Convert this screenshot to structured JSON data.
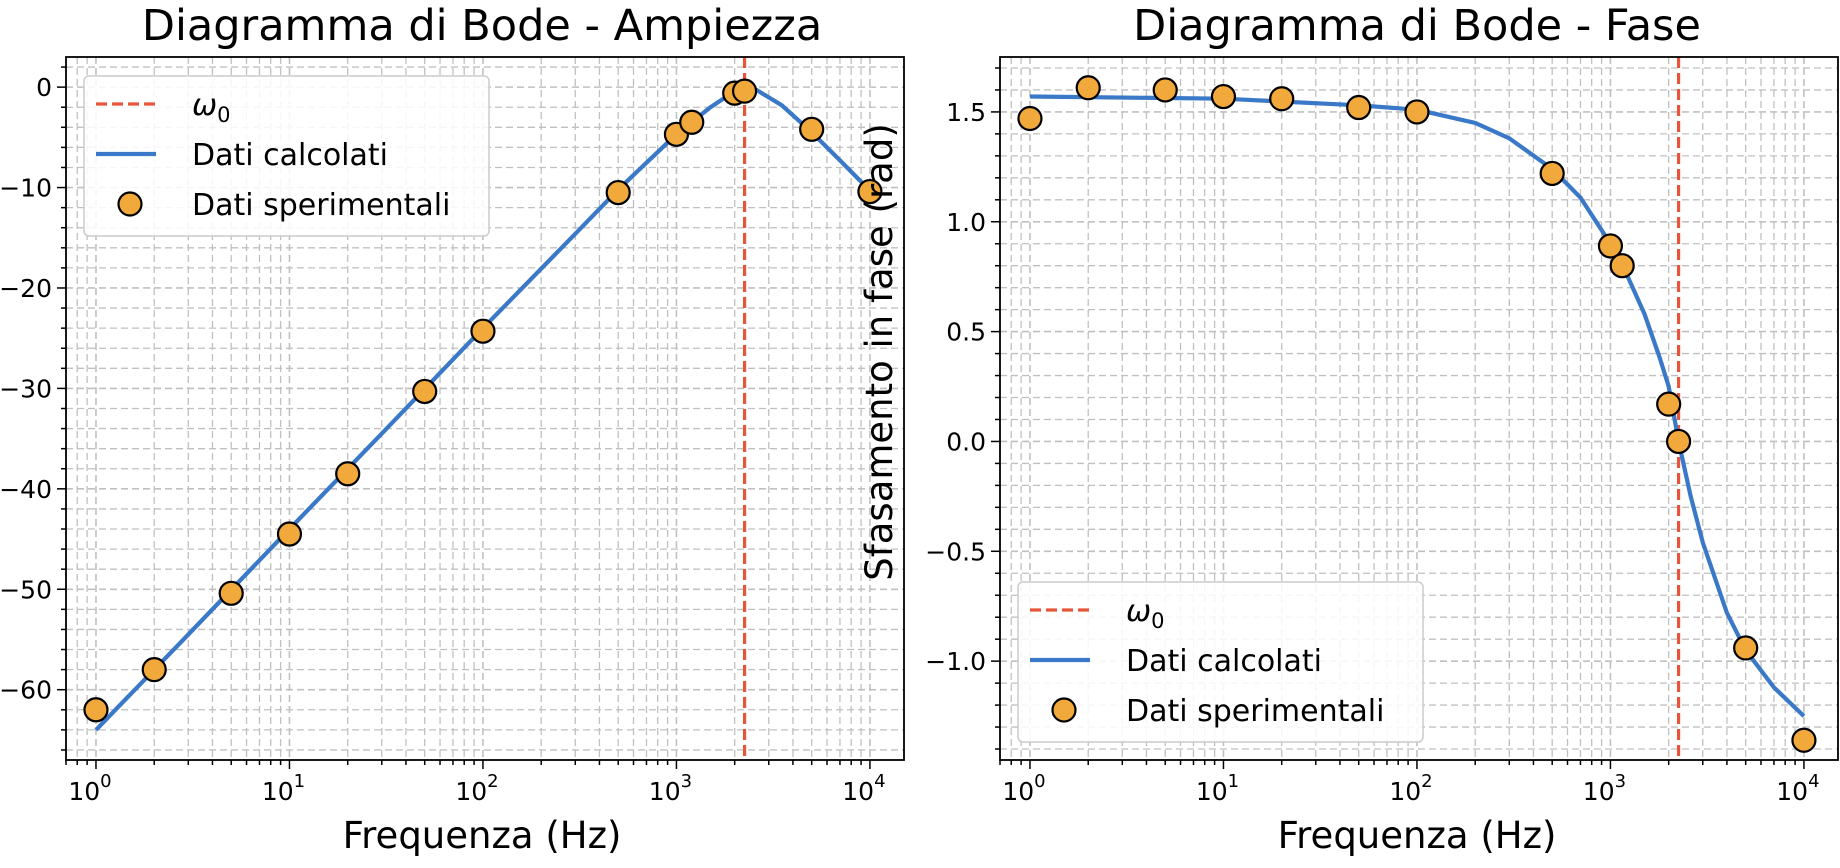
{
  "colors": {
    "omega_line": "#e8553a",
    "curve": "#3a78c8",
    "points": "#f2a93b",
    "point_edge": "#000000",
    "grid": "#c0c0c0"
  },
  "chart_data": [
    {
      "type": "line",
      "title": "Diagramma di Bode - Ampiezza",
      "xlabel": "Frequenza (Hz)",
      "ylabel": "",
      "xscale": "log",
      "xlim": [
        0.7,
        15000
      ],
      "ylim": [
        -67,
        3
      ],
      "xticks": [
        {
          "value": 1,
          "base": "10",
          "exp": "0"
        },
        {
          "value": 10,
          "base": "10",
          "exp": "1"
        },
        {
          "value": 100,
          "base": "10",
          "exp": "2"
        },
        {
          "value": 1000,
          "base": "10",
          "exp": "3"
        },
        {
          "value": 10000,
          "base": "10",
          "exp": "4"
        }
      ],
      "yticks": [
        {
          "value": 0,
          "label": "0"
        },
        {
          "value": -10,
          "label": "−10"
        },
        {
          "value": -20,
          "label": "−20"
        },
        {
          "value": -30,
          "label": "−30"
        },
        {
          "value": -40,
          "label": "−40"
        },
        {
          "value": -50,
          "label": "−50"
        },
        {
          "value": -60,
          "label": "−60"
        }
      ],
      "grid": true,
      "legend_position": "top-left",
      "omega0": 2250,
      "series": [
        {
          "name": "Dati calcolati",
          "kind": "line",
          "x": [
            1,
            3,
            10,
            30,
            100,
            300,
            500,
            1000,
            1500,
            2000,
            2250,
            2600,
            3500,
            5000,
            7000,
            10000
          ],
          "y": [
            -64.0,
            -54.5,
            -44.0,
            -34.5,
            -24.0,
            -14.6,
            -10.2,
            -4.7,
            -2.0,
            -0.4,
            0.0,
            -0.3,
            -1.8,
            -4.5,
            -7.3,
            -10.3
          ]
        },
        {
          "name": "Dati sperimentali",
          "kind": "scatter",
          "x": [
            1,
            2,
            5,
            10,
            20,
            50,
            100,
            500,
            1000,
            1200,
            2000,
            2250,
            5000,
            10000
          ],
          "y": [
            -62,
            -58,
            -50.4,
            -44.5,
            -38.5,
            -30.3,
            -24.3,
            -10.5,
            -4.7,
            -3.5,
            -0.6,
            -0.4,
            -4.2,
            -10.4
          ]
        }
      ],
      "legend": [
        {
          "kind": "dashed",
          "label_base": "ω",
          "label_sub": "0"
        },
        {
          "kind": "line",
          "label": "Dati calcolati"
        },
        {
          "kind": "marker",
          "label": "Dati sperimentali"
        }
      ]
    },
    {
      "type": "line",
      "title": "Diagramma di Bode - Fase",
      "xlabel": "Frequenza (Hz)",
      "ylabel": "Sfasamento in fase (rad)",
      "xscale": "log",
      "xlim": [
        0.7,
        15000
      ],
      "ylim": [
        -1.45,
        1.75
      ],
      "xticks": [
        {
          "value": 1,
          "base": "10",
          "exp": "0"
        },
        {
          "value": 10,
          "base": "10",
          "exp": "1"
        },
        {
          "value": 100,
          "base": "10",
          "exp": "2"
        },
        {
          "value": 1000,
          "base": "10",
          "exp": "3"
        },
        {
          "value": 10000,
          "base": "10",
          "exp": "4"
        }
      ],
      "yticks": [
        {
          "value": 1.5,
          "label": "1.5"
        },
        {
          "value": 1.0,
          "label": "1.0"
        },
        {
          "value": 0.5,
          "label": "0.5"
        },
        {
          "value": 0.0,
          "label": "0.0"
        },
        {
          "value": -0.5,
          "label": "−0.5"
        },
        {
          "value": -1.0,
          "label": "−1.0"
        }
      ],
      "grid": true,
      "legend_position": "bottom-left",
      "omega0": 2250,
      "series": [
        {
          "name": "Dati calcolati",
          "kind": "line",
          "x": [
            1,
            10,
            50,
            100,
            200,
            300,
            500,
            700,
            1000,
            1200,
            1500,
            1800,
            2000,
            2250,
            2600,
            3000,
            4000,
            5000,
            7000,
            10000
          ],
          "y": [
            1.57,
            1.56,
            1.53,
            1.51,
            1.45,
            1.38,
            1.24,
            1.11,
            0.9,
            0.77,
            0.58,
            0.38,
            0.25,
            0.0,
            -0.25,
            -0.46,
            -0.78,
            -0.95,
            -1.12,
            -1.25
          ]
        },
        {
          "name": "Dati sperimentali",
          "kind": "scatter",
          "x": [
            1,
            2,
            5,
            10,
            20,
            50,
            100,
            500,
            1000,
            1150,
            2000,
            2250,
            5000,
            10000
          ],
          "y": [
            1.47,
            1.61,
            1.6,
            1.57,
            1.56,
            1.52,
            1.5,
            1.22,
            0.89,
            0.8,
            0.17,
            0.0,
            -0.94,
            -1.36
          ]
        }
      ],
      "legend": [
        {
          "kind": "dashed",
          "label_base": "ω",
          "label_sub": "0"
        },
        {
          "kind": "line",
          "label": "Dati calcolati"
        },
        {
          "kind": "marker",
          "label": "Dati sperimentali"
        }
      ]
    }
  ]
}
